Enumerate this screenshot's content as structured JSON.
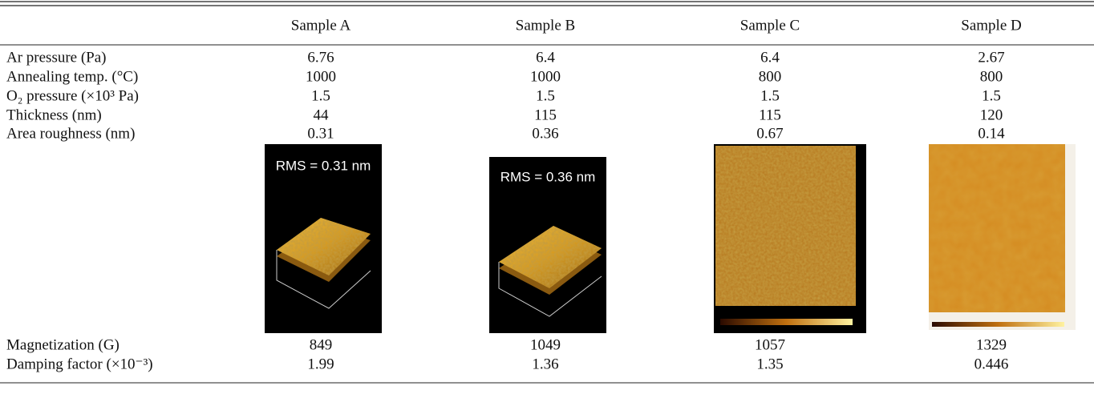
{
  "table": {
    "columns": [
      "Sample A",
      "Sample B",
      "Sample C",
      "Sample D"
    ],
    "rows": [
      {
        "label": "Ar pressure (Pa)",
        "values": [
          6.76,
          6.4,
          6.4,
          2.67
        ]
      },
      {
        "label": "Annealing temp. (°C)",
        "values": [
          1000,
          1000,
          800,
          800
        ]
      },
      {
        "label": "O₂ pressure (×10³ Pa)",
        "values": [
          1.5,
          1.5,
          1.5,
          1.5
        ]
      },
      {
        "label": "Thickness (nm)",
        "values": [
          44,
          115,
          115,
          120
        ]
      },
      {
        "label": "Area roughness (nm)",
        "values": [
          0.31,
          0.36,
          0.67,
          0.14
        ]
      },
      {
        "label": "Magnetization (G)",
        "values": [
          849,
          1049,
          1057,
          1329
        ]
      },
      {
        "label": "Damping factor (×10⁻³)",
        "values": [
          1.99,
          1.36,
          1.35,
          0.446
        ]
      }
    ],
    "afm_captions": [
      "RMS = 0.31 nm",
      "RMS = 0.36 nm"
    ]
  }
}
